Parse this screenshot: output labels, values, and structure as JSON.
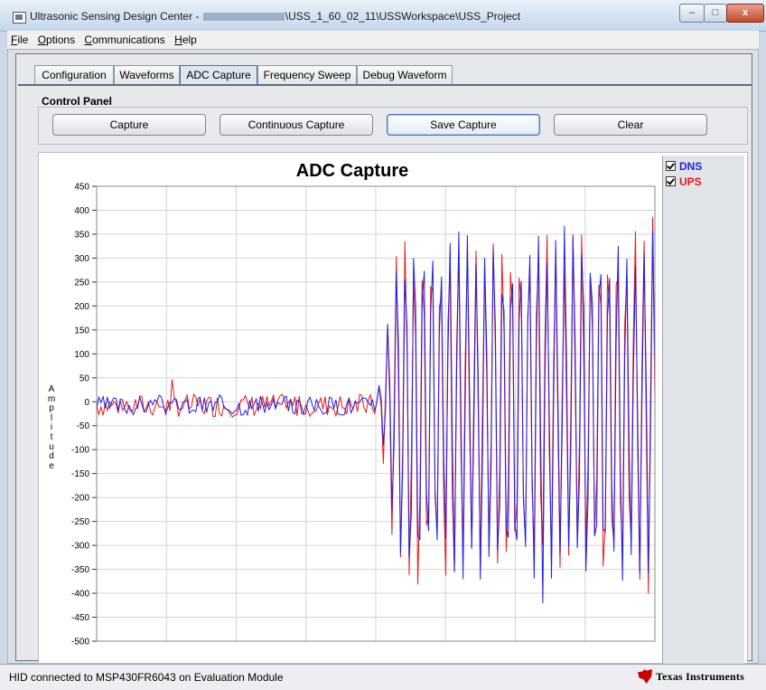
{
  "window": {
    "title_prefix": "Ultrasonic Sensing Design Center - ",
    "title_suffix": "\\USS_1_60_02_11\\USSWorkspace\\USS_Project",
    "minimize_label": "–",
    "maximize_label": "□",
    "close_label": "x"
  },
  "menu": {
    "items": [
      {
        "underline": "F",
        "rest": "ile"
      },
      {
        "underline": "O",
        "rest": "ptions"
      },
      {
        "underline": "C",
        "rest": "ommunications"
      },
      {
        "underline": "H",
        "rest": "elp"
      }
    ]
  },
  "tabs": [
    {
      "label": "Configuration"
    },
    {
      "label": "Waveforms"
    },
    {
      "label": "ADC Capture",
      "active": true
    },
    {
      "label": "Frequency Sweep"
    },
    {
      "label": "Debug Waveform"
    }
  ],
  "control_panel": {
    "title": "Control Panel",
    "capture": "Capture",
    "continuous_capture": "Continuous Capture",
    "save_capture": "Save Capture",
    "clear": "Clear"
  },
  "legend": {
    "dns": {
      "label": "DNS",
      "color": "#1f1fe6",
      "checked": true
    },
    "ups": {
      "label": "UPS",
      "color": "#e61a1a",
      "checked": true
    }
  },
  "chart_data": {
    "type": "line",
    "title": "ADC Capture",
    "ylabel": "Amplitude",
    "ylim": [
      -500,
      450
    ],
    "yticks": [
      450,
      400,
      350,
      300,
      250,
      200,
      150,
      100,
      50,
      0,
      -50,
      -100,
      -150,
      -200,
      -250,
      -300,
      -350,
      -400,
      -450,
      -500
    ],
    "grid": true,
    "samples": 260,
    "baseline_samples": 130,
    "series": [
      {
        "name": "DNS",
        "color": "#1f1fe6",
        "baseline_range": [
          -20,
          30
        ],
        "burst_peak_max": 400,
        "burst_trough_min": -440
      },
      {
        "name": "UPS",
        "color": "#e61a1a",
        "baseline_range": [
          -25,
          35
        ],
        "burst_peak_max": 400,
        "burst_trough_min": -460
      }
    ]
  },
  "status": {
    "text": "HID connected to MSP430FR6043 on Evaluation Module",
    "logo_text": "Texas Instruments"
  }
}
